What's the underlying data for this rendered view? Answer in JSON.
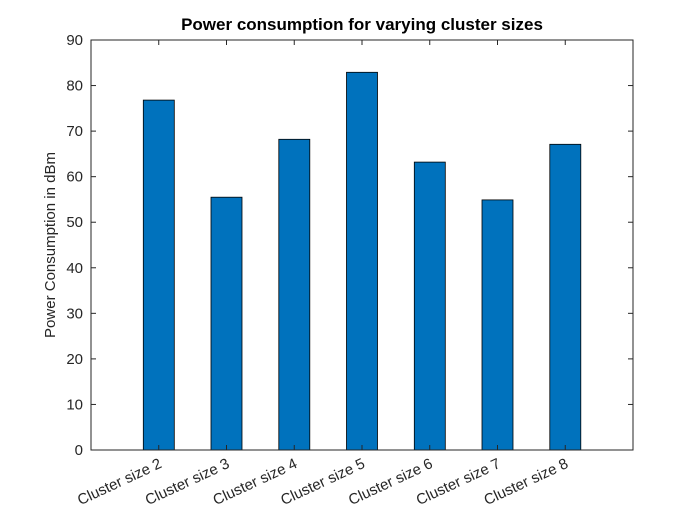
{
  "chart_data": {
    "type": "bar",
    "title": "Power consumption for varying cluster sizes",
    "xlabel": "",
    "ylabel": "Power Consumption in dBm",
    "categories": [
      "Cluster size 2",
      "Cluster size 3",
      "Cluster size 4",
      "Cluster size 5",
      "Cluster size 6",
      "Cluster size 7",
      "Cluster size 8"
    ],
    "values": [
      76.8,
      55.5,
      68.2,
      82.9,
      63.2,
      54.9,
      67.1
    ],
    "ylim": [
      0,
      90
    ],
    "yticks": [
      "0",
      "10",
      "20",
      "30",
      "40",
      "50",
      "60",
      "70",
      "80",
      "90"
    ],
    "grid": false,
    "legend": false,
    "bar_color": "#0072BD",
    "axis_color": "#262626"
  }
}
